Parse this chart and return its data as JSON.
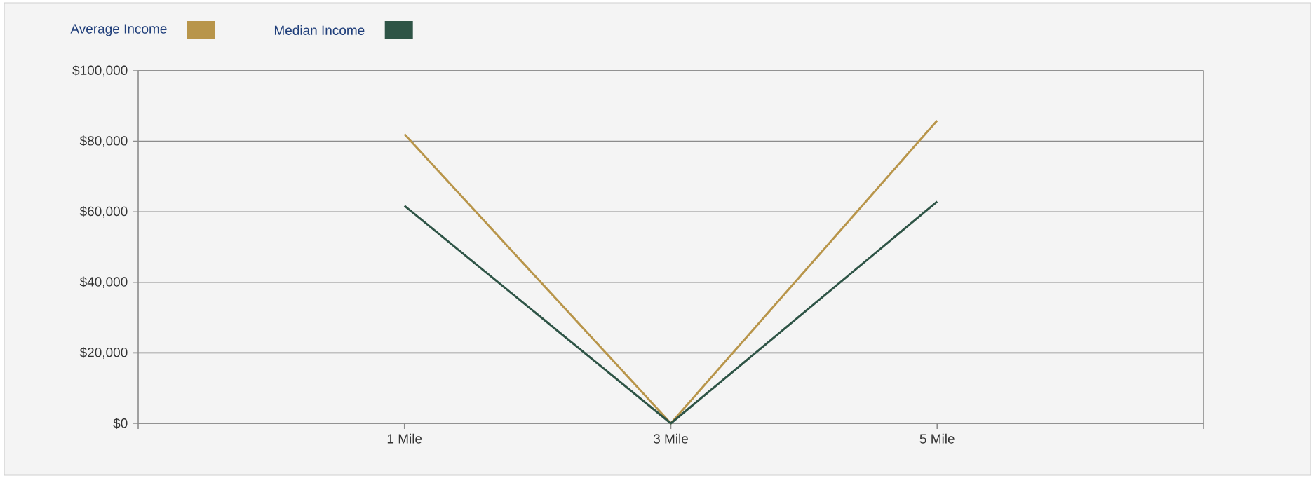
{
  "chart_data": {
    "type": "line",
    "categories": [
      "1 Mile",
      "3 Mile",
      "5 Mile"
    ],
    "series": [
      {
        "name": "Average Income",
        "color": "#b8954a",
        "values": [
          82000,
          0,
          85900
        ]
      },
      {
        "name": "Median Income",
        "color": "#2e5446",
        "values": [
          61700,
          0,
          62900
        ]
      }
    ],
    "ylim": [
      0,
      100000
    ],
    "yticks": [
      {
        "value": 0,
        "label": "$0"
      },
      {
        "value": 20000,
        "label": "$20,000"
      },
      {
        "value": 40000,
        "label": "$40,000"
      },
      {
        "value": 60000,
        "label": "$60,000"
      },
      {
        "value": 80000,
        "label": "$80,000"
      },
      {
        "value": 100000,
        "label": "$100,000"
      }
    ],
    "grid": "y",
    "legend": "top left",
    "marker": "none",
    "line_style": "solid"
  }
}
